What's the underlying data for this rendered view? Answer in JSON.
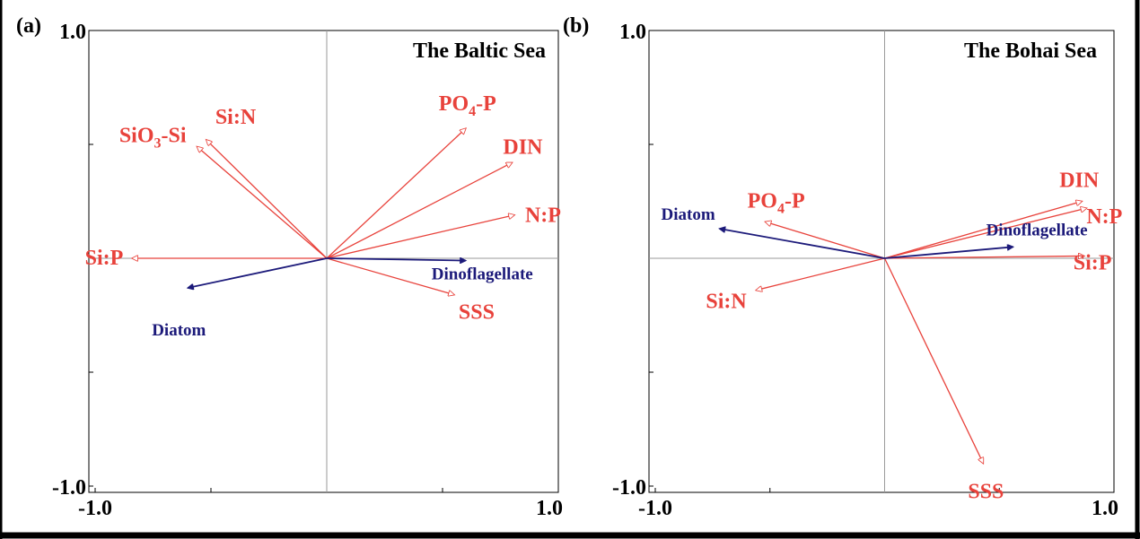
{
  "chart_data": [
    {
      "panel_label": "(a)",
      "title": "The Baltic Sea",
      "type": "biplot",
      "xlim": [
        -1.0,
        1.0
      ],
      "ylim": [
        -1.0,
        1.0
      ],
      "x_tick_labels": [
        "-1.0",
        "1.0"
      ],
      "y_tick_labels": [
        "1.0",
        "-1.0"
      ],
      "grid": false,
      "env_color": "#e8423b",
      "species_color": "#1c1a7a",
      "arrows": [
        {
          "label": "Si:N",
          "x": -0.52,
          "y": 0.52,
          "group": "env"
        },
        {
          "label": "SiO3-Si",
          "label_parts": [
            {
              "t": "SiO"
            },
            {
              "t": "3",
              "sub": true
            },
            {
              "t": "-Si"
            }
          ],
          "x": -0.56,
          "y": 0.49,
          "group": "env"
        },
        {
          "label": "PO4-P",
          "label_parts": [
            {
              "t": "PO"
            },
            {
              "t": "4",
              "sub": true
            },
            {
              "t": "-P"
            }
          ],
          "x": 0.6,
          "y": 0.57,
          "group": "env"
        },
        {
          "label": "DIN",
          "x": 0.8,
          "y": 0.42,
          "group": "env"
        },
        {
          "label": "N:P",
          "x": 0.81,
          "y": 0.19,
          "group": "env"
        },
        {
          "label": "Si:P",
          "x": -0.84,
          "y": 0.0,
          "group": "env"
        },
        {
          "label": "SSS",
          "x": 0.55,
          "y": -0.16,
          "group": "env"
        },
        {
          "label": "Dinoflagellate",
          "x": 0.6,
          "y": -0.01,
          "group": "species"
        },
        {
          "label": "Diatom",
          "x": -0.6,
          "y": -0.13,
          "group": "species"
        }
      ]
    },
    {
      "panel_label": "(b)",
      "title": "The Bohai Sea",
      "type": "biplot",
      "xlim": [
        -1.0,
        1.0
      ],
      "ylim": [
        -1.0,
        1.0
      ],
      "x_tick_labels": [
        "-1.0",
        "1.0"
      ],
      "y_tick_labels": [
        "1.0",
        "-1.0"
      ],
      "grid": false,
      "env_color": "#e8423b",
      "species_color": "#1c1a7a",
      "arrows": [
        {
          "label": "DIN",
          "x": 0.86,
          "y": 0.25,
          "group": "env"
        },
        {
          "label": "N:P",
          "x": 0.88,
          "y": 0.22,
          "group": "env"
        },
        {
          "label": "PO4-P",
          "label_parts": [
            {
              "t": "PO"
            },
            {
              "t": "4",
              "sub": true
            },
            {
              "t": "-P"
            }
          ],
          "x": -0.52,
          "y": 0.16,
          "group": "env"
        },
        {
          "label": "Si:P",
          "x": 0.87,
          "y": 0.01,
          "group": "env"
        },
        {
          "label": "Si:N",
          "x": -0.56,
          "y": -0.14,
          "group": "env"
        },
        {
          "label": "SSS",
          "x": 0.43,
          "y": -0.9,
          "group": "env"
        },
        {
          "label": "Dinoflagellate",
          "x": 0.56,
          "y": 0.05,
          "group": "species"
        },
        {
          "label": "Diatom",
          "x": -0.72,
          "y": 0.13,
          "group": "species"
        }
      ]
    }
  ]
}
